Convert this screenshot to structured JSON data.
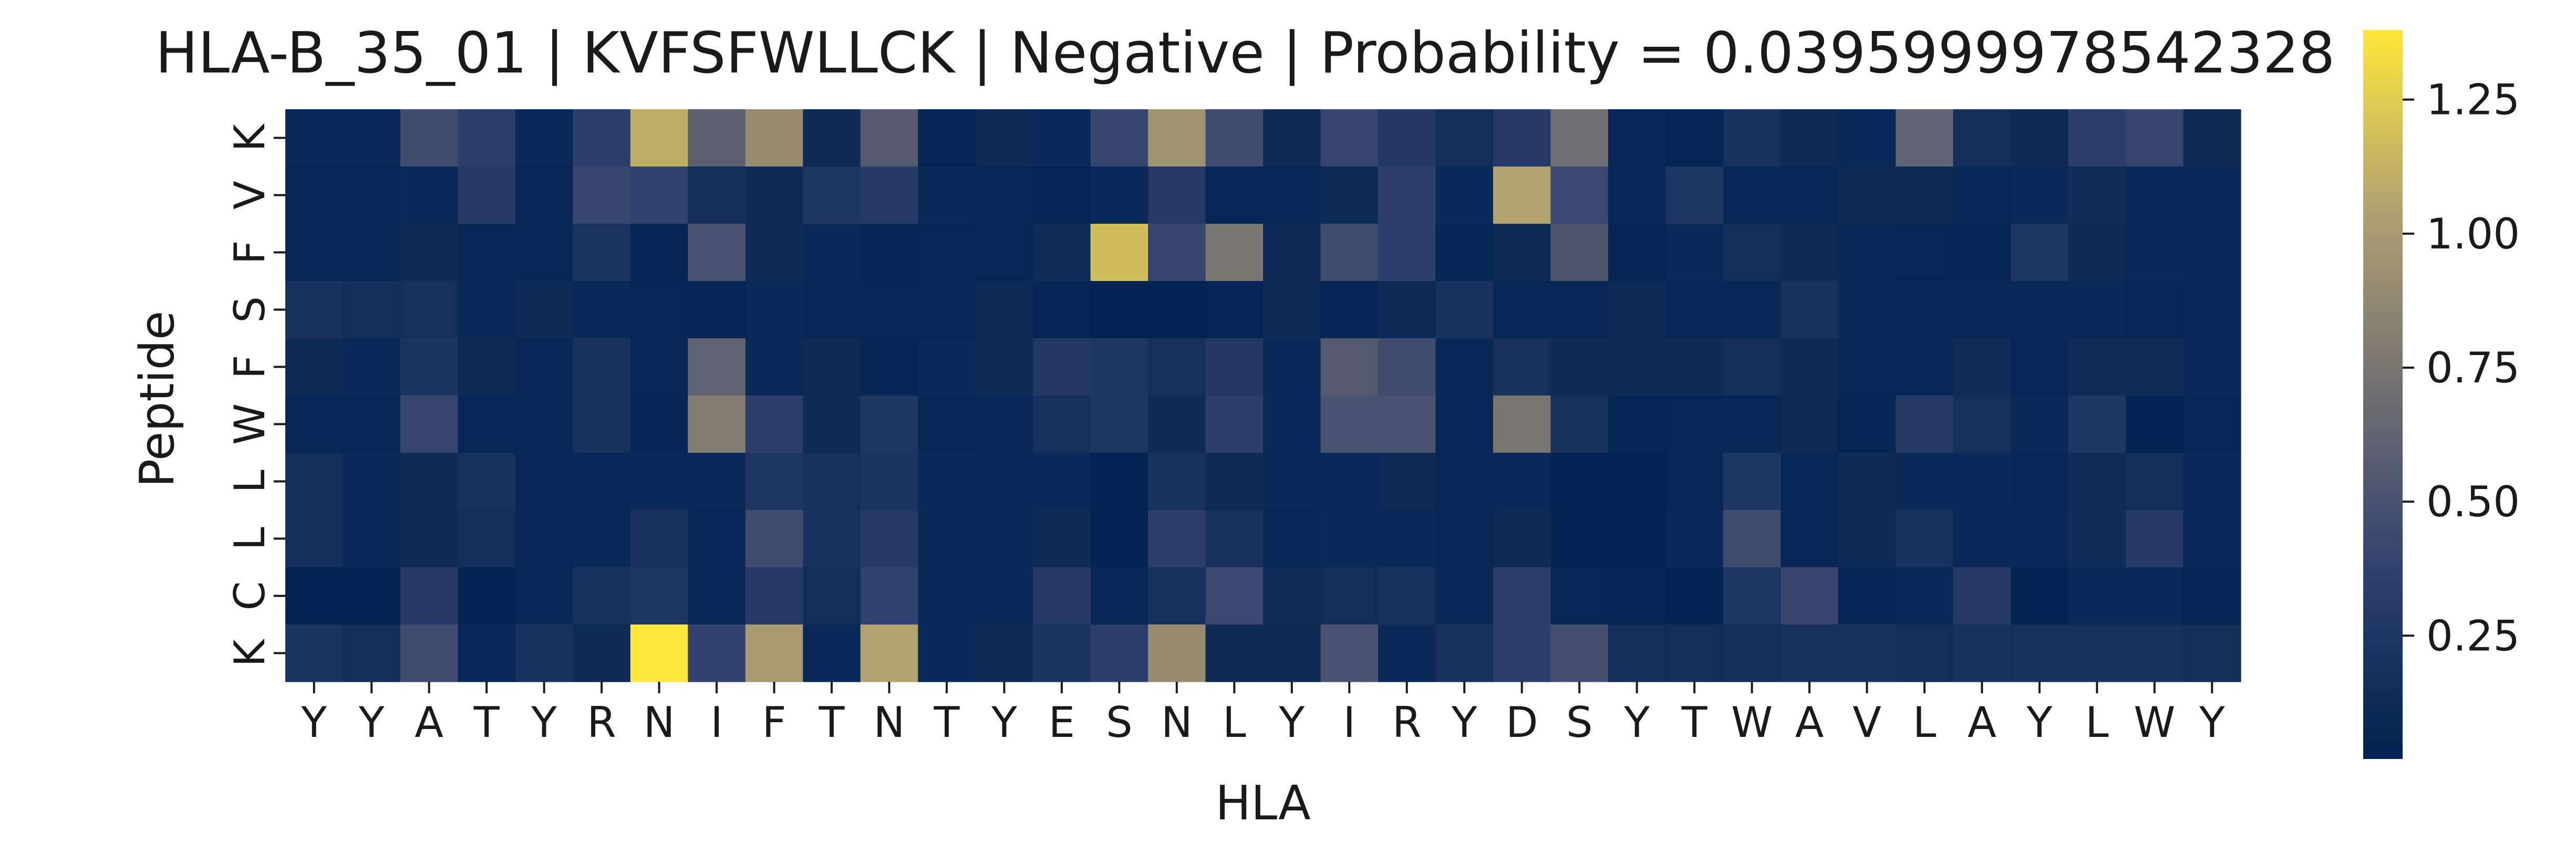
{
  "chart_data": {
    "type": "heatmap",
    "title": "HLA-B_35_01 | KVFSFWLLCK | Negative | Probability = 0.0395999978542328",
    "xlabel": "HLA",
    "ylabel": "Peptide",
    "x_labels": [
      "Y",
      "Y",
      "A",
      "T",
      "Y",
      "R",
      "N",
      "I",
      "F",
      "T",
      "N",
      "T",
      "Y",
      "E",
      "S",
      "N",
      "L",
      "Y",
      "I",
      "R",
      "Y",
      "D",
      "S",
      "Y",
      "T",
      "W",
      "A",
      "V",
      "L",
      "A",
      "Y",
      "L",
      "W",
      "Y"
    ],
    "y_labels": [
      "K",
      "V",
      "F",
      "S",
      "F",
      "W",
      "L",
      "L",
      "C",
      "K"
    ],
    "colormap": "cividis",
    "colorbar": {
      "range": [
        0.02,
        1.38
      ],
      "ticks": [
        "0.25",
        "0.50",
        "0.75",
        "1.00",
        "1.25"
      ]
    },
    "values": [
      [
        0.1,
        0.1,
        0.45,
        0.32,
        0.1,
        0.35,
        1.1,
        0.6,
        0.9,
        0.12,
        0.55,
        0.06,
        0.12,
        0.1,
        0.4,
        0.95,
        0.45,
        0.12,
        0.4,
        0.28,
        0.15,
        0.3,
        0.7,
        0.08,
        0.06,
        0.18,
        0.12,
        0.1,
        0.62,
        0.15,
        0.12,
        0.35,
        0.4,
        0.12
      ],
      [
        0.08,
        0.08,
        0.1,
        0.3,
        0.08,
        0.4,
        0.38,
        0.15,
        0.12,
        0.25,
        0.3,
        0.1,
        0.08,
        0.06,
        0.1,
        0.3,
        0.07,
        0.08,
        0.12,
        0.35,
        0.1,
        1.05,
        0.42,
        0.08,
        0.25,
        0.08,
        0.08,
        0.12,
        0.12,
        0.08,
        0.1,
        0.14,
        0.1,
        0.1
      ],
      [
        0.08,
        0.08,
        0.12,
        0.08,
        0.08,
        0.22,
        0.06,
        0.5,
        0.12,
        0.1,
        0.06,
        0.07,
        0.07,
        0.14,
        1.18,
        0.4,
        0.75,
        0.12,
        0.45,
        0.35,
        0.06,
        0.12,
        0.52,
        0.06,
        0.1,
        0.15,
        0.12,
        0.1,
        0.07,
        0.06,
        0.25,
        0.12,
        0.1,
        0.1
      ],
      [
        0.2,
        0.15,
        0.18,
        0.1,
        0.12,
        0.1,
        0.07,
        0.06,
        0.1,
        0.08,
        0.07,
        0.08,
        0.12,
        0.06,
        0.04,
        0.04,
        0.06,
        0.12,
        0.06,
        0.12,
        0.2,
        0.08,
        0.08,
        0.12,
        0.07,
        0.08,
        0.18,
        0.1,
        0.1,
        0.1,
        0.1,
        0.1,
        0.07,
        0.1
      ],
      [
        0.12,
        0.1,
        0.22,
        0.12,
        0.08,
        0.2,
        0.07,
        0.62,
        0.1,
        0.12,
        0.06,
        0.1,
        0.12,
        0.28,
        0.25,
        0.18,
        0.28,
        0.1,
        0.55,
        0.45,
        0.08,
        0.18,
        0.12,
        0.12,
        0.12,
        0.15,
        0.12,
        0.08,
        0.08,
        0.14,
        0.08,
        0.14,
        0.14,
        0.1
      ],
      [
        0.08,
        0.08,
        0.4,
        0.08,
        0.08,
        0.2,
        0.06,
        0.8,
        0.35,
        0.12,
        0.25,
        0.08,
        0.1,
        0.18,
        0.25,
        0.12,
        0.35,
        0.1,
        0.5,
        0.5,
        0.08,
        0.75,
        0.2,
        0.06,
        0.07,
        0.08,
        0.12,
        0.06,
        0.3,
        0.18,
        0.1,
        0.25,
        0.05,
        0.08
      ],
      [
        0.15,
        0.1,
        0.12,
        0.18,
        0.07,
        0.07,
        0.1,
        0.1,
        0.25,
        0.18,
        0.22,
        0.1,
        0.1,
        0.1,
        0.04,
        0.2,
        0.12,
        0.1,
        0.1,
        0.12,
        0.07,
        0.1,
        0.04,
        0.04,
        0.08,
        0.25,
        0.08,
        0.12,
        0.1,
        0.1,
        0.08,
        0.14,
        0.15,
        0.1
      ],
      [
        0.15,
        0.1,
        0.12,
        0.15,
        0.08,
        0.1,
        0.2,
        0.08,
        0.45,
        0.2,
        0.3,
        0.1,
        0.1,
        0.12,
        0.04,
        0.35,
        0.2,
        0.08,
        0.1,
        0.1,
        0.07,
        0.12,
        0.04,
        0.04,
        0.1,
        0.45,
        0.08,
        0.12,
        0.18,
        0.1,
        0.1,
        0.14,
        0.3,
        0.1
      ],
      [
        0.05,
        0.05,
        0.3,
        0.05,
        0.08,
        0.2,
        0.25,
        0.1,
        0.3,
        0.15,
        0.38,
        0.1,
        0.1,
        0.3,
        0.08,
        0.18,
        0.42,
        0.14,
        0.15,
        0.18,
        0.08,
        0.35,
        0.07,
        0.06,
        0.04,
        0.25,
        0.4,
        0.06,
        0.1,
        0.3,
        0.05,
        0.1,
        0.1,
        0.06
      ],
      [
        0.22,
        0.15,
        0.45,
        0.08,
        0.2,
        0.12,
        1.38,
        0.38,
        1.0,
        0.1,
        1.05,
        0.1,
        0.12,
        0.22,
        0.35,
        0.9,
        0.12,
        0.12,
        0.5,
        0.1,
        0.2,
        0.35,
        0.48,
        0.15,
        0.15,
        0.15,
        0.2,
        0.2,
        0.15,
        0.2,
        0.18,
        0.18,
        0.18,
        0.15
      ]
    ]
  }
}
